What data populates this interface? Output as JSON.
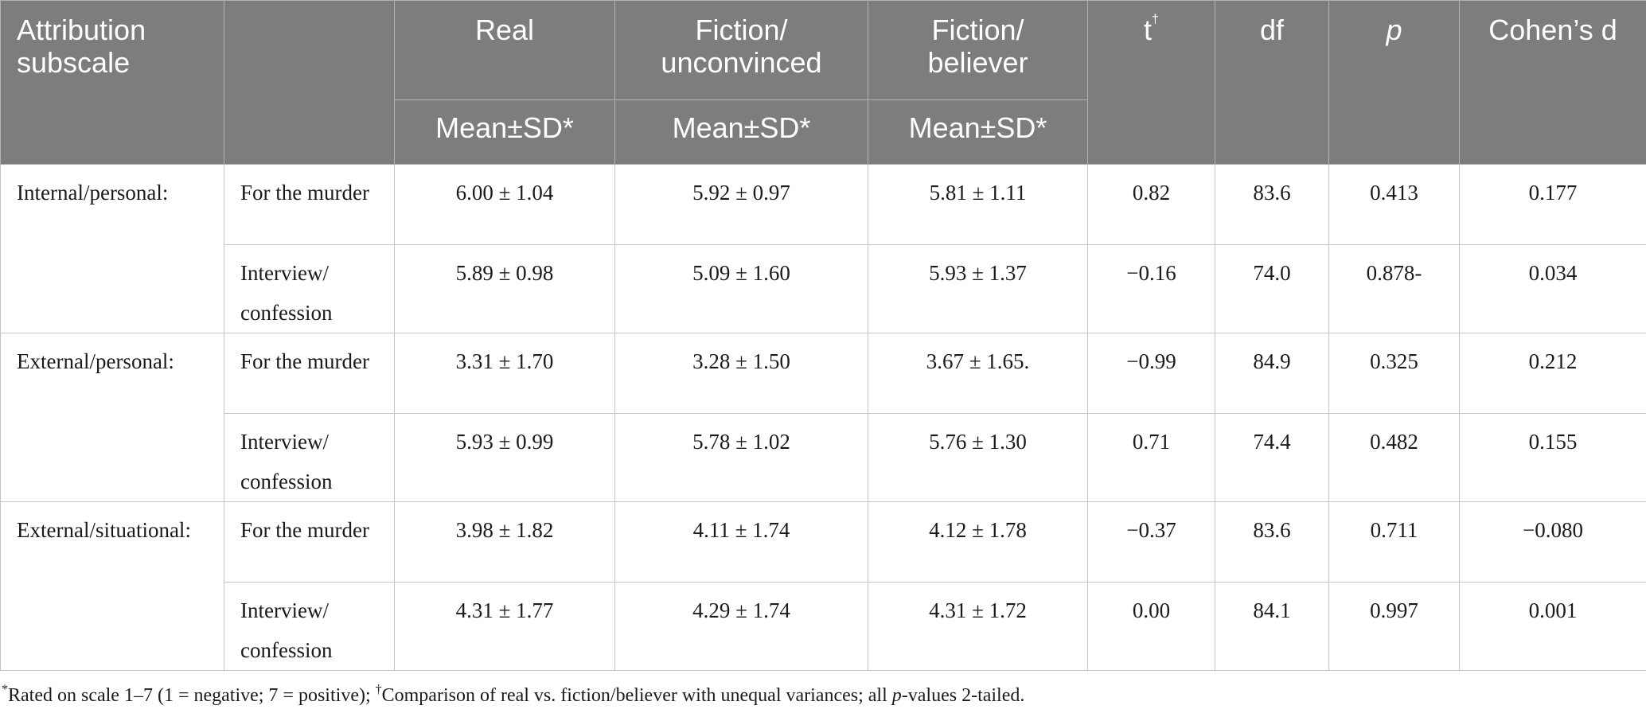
{
  "headers": {
    "attribution_subscale": "Attribution subscale",
    "blank": "",
    "real": "Real",
    "fiction_unconvinced": "Fiction/ unconvinced",
    "fiction_believer": "Fiction/ believer",
    "t": "t",
    "t_dagger": "†",
    "df": "df",
    "p": "p",
    "cohens_d": "Cohen’s d",
    "mean_sd": "Mean±SD*"
  },
  "groups": [
    {
      "label": "Internal/personal:",
      "rows": [
        {
          "sub": "For the murder",
          "real": "6.00 ± 1.04",
          "unconvinced": "5.92 ± 0.97",
          "believer": "5.81 ± 1.11",
          "t": "0.82",
          "df": "83.6",
          "p": "0.413",
          "d": "0.177"
        },
        {
          "sub": "Interview/ confession",
          "real": "5.89 ± 0.98",
          "unconvinced": "5.09 ± 1.60",
          "believer": "5.93 ± 1.37",
          "t": "−0.16",
          "df": "74.0",
          "p": "0.878-",
          "d": "0.034"
        }
      ]
    },
    {
      "label": "External/personal:",
      "rows": [
        {
          "sub": "For the murder",
          "real": "3.31 ± 1.70",
          "unconvinced": "3.28 ± 1.50",
          "believer": "3.67 ± 1.65.",
          "t": "−0.99",
          "df": "84.9",
          "p": "0.325",
          "d": "0.212"
        },
        {
          "sub": "Interview/ confession",
          "real": "5.93 ± 0.99",
          "unconvinced": "5.78 ± 1.02",
          "believer": "5.76 ± 1.30",
          "t": "0.71",
          "df": "74.4",
          "p": "0.482",
          "d": "0.155"
        }
      ]
    },
    {
      "label": "External/situational:",
      "rows": [
        {
          "sub": "For the murder",
          "real": "3.98 ± 1.82",
          "unconvinced": "4.11 ± 1.74",
          "believer": "4.12 ± 1.78",
          "t": "−0.37",
          "df": "83.6",
          "p": "0.711",
          "d": "−0.080"
        },
        {
          "sub": "Interview/ confession",
          "real": "4.31 ± 1.77",
          "unconvinced": "4.29 ± 1.74",
          "believer": "4.31 ± 1.72",
          "t": "0.00",
          "df": "84.1",
          "p": "0.997",
          "d": "0.001"
        }
      ]
    }
  ],
  "footnote": {
    "star": "*",
    "part1": "Rated on scale 1–7 (1 = negative; 7 = positive); ",
    "dagger": "†",
    "part2": "Comparison of real vs. fiction/believer with unequal variances; all ",
    "p_italic": "p",
    "part3": "-values 2-tailed."
  }
}
